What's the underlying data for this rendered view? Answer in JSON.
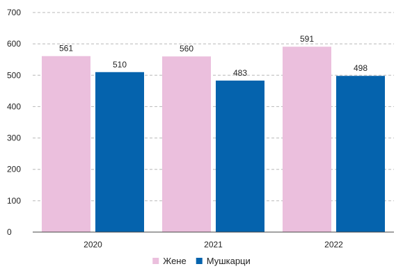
{
  "chart_data": {
    "type": "bar",
    "categories": [
      "2020",
      "2021",
      "2022"
    ],
    "series": [
      {
        "name": "Жене",
        "values": [
          561,
          560,
          591
        ],
        "color": "#ebbfdd"
      },
      {
        "name": "Мушкарци",
        "values": [
          510,
          483,
          498
        ],
        "color": "#0563ad"
      }
    ],
    "ylim": [
      0,
      700
    ],
    "yticks": [
      "0",
      "100",
      "200",
      "300",
      "400",
      "500",
      "600",
      "700"
    ],
    "grid": true,
    "legend": "bottom-center"
  }
}
